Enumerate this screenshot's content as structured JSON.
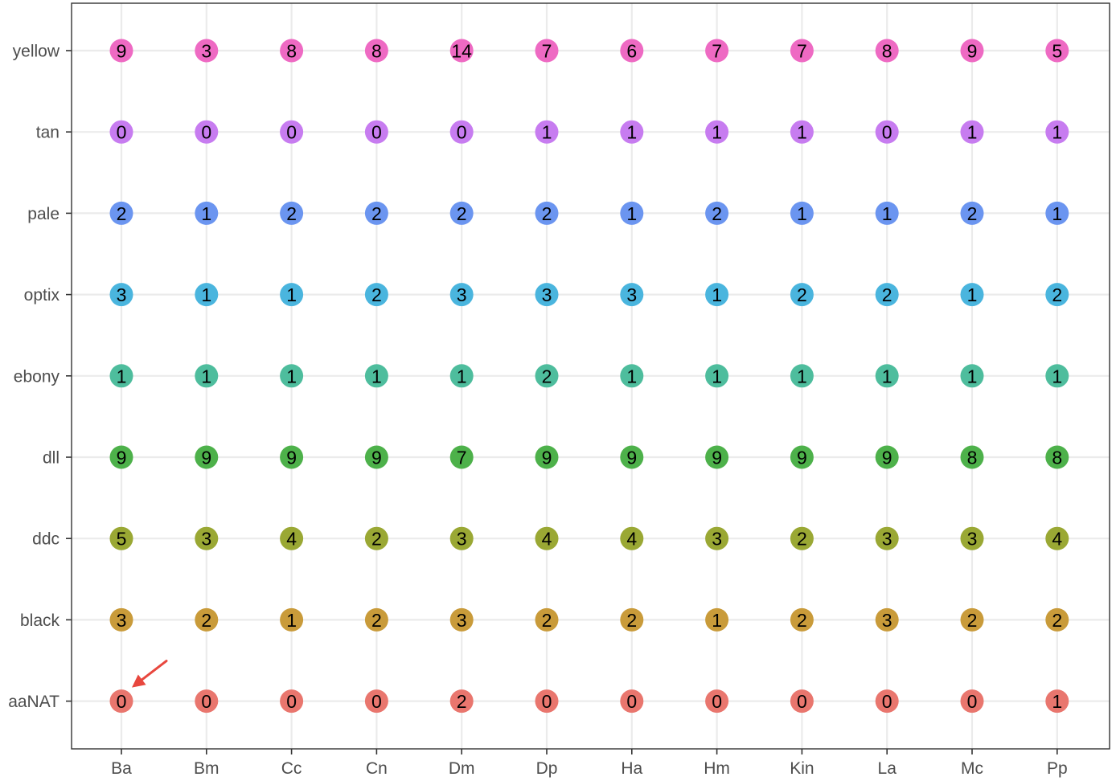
{
  "chart_data": {
    "type": "scatter",
    "title": "",
    "xlabel": "",
    "ylabel": "",
    "x_categories": [
      "Ba",
      "Bm",
      "Cc",
      "Cn",
      "Dm",
      "Dp",
      "Ha",
      "Hm",
      "Kin",
      "La",
      "Mc",
      "Pp"
    ],
    "y_categories": [
      "aaNAT",
      "black",
      "ddc",
      "dll",
      "ebony",
      "optix",
      "pale",
      "tan",
      "yellow"
    ],
    "series": [
      {
        "color": "#E9766E",
        "values": [
          0,
          0,
          0,
          0,
          2,
          0,
          0,
          0,
          0,
          0,
          0,
          1
        ]
      },
      {
        "color": "#C99B3A",
        "values": [
          3,
          2,
          1,
          2,
          3,
          2,
          2,
          1,
          2,
          3,
          2,
          2
        ]
      },
      {
        "color": "#9AA834",
        "values": [
          5,
          3,
          4,
          2,
          3,
          4,
          4,
          3,
          2,
          3,
          3,
          4
        ]
      },
      {
        "color": "#4DB14A",
        "values": [
          9,
          9,
          9,
          9,
          7,
          9,
          9,
          9,
          9,
          9,
          8,
          8
        ]
      },
      {
        "color": "#4EBD9D",
        "values": [
          1,
          1,
          1,
          1,
          1,
          2,
          1,
          1,
          1,
          1,
          1,
          1
        ]
      },
      {
        "color": "#4AB5DE",
        "values": [
          3,
          1,
          1,
          2,
          3,
          3,
          3,
          1,
          2,
          2,
          1,
          2
        ]
      },
      {
        "color": "#6B95F0",
        "values": [
          2,
          1,
          2,
          2,
          2,
          2,
          1,
          2,
          1,
          1,
          2,
          1
        ]
      },
      {
        "color": "#C77CF0",
        "values": [
          0,
          0,
          0,
          0,
          0,
          1,
          1,
          1,
          1,
          0,
          1,
          1
        ]
      },
      {
        "color": "#EE6AC3",
        "values": [
          9,
          3,
          8,
          8,
          14,
          7,
          6,
          7,
          7,
          8,
          9,
          5
        ]
      }
    ],
    "annotation": {
      "type": "arrow",
      "points_to": {
        "x": "Ba",
        "y": "aaNAT"
      },
      "color": "#E8473E"
    },
    "grid": true,
    "legend": "none"
  }
}
